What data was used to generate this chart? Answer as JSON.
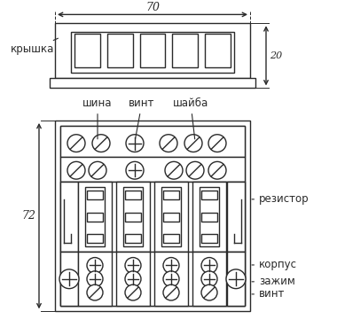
{
  "bg_color": "#ffffff",
  "lc": "#2a2a2a",
  "lw": 1.0,
  "fig_w": 3.8,
  "fig_h": 3.78,
  "dim_70": "70",
  "dim_20": "20",
  "dim_72": "72",
  "label_krishka": "крышка",
  "label_shina": "шина",
  "label_vint": "винт",
  "label_shayba": "шайба",
  "label_rezistor": "резистор",
  "label_korpus": "корпус",
  "label_zazhim": "зажим",
  "label_vint2": "винт"
}
